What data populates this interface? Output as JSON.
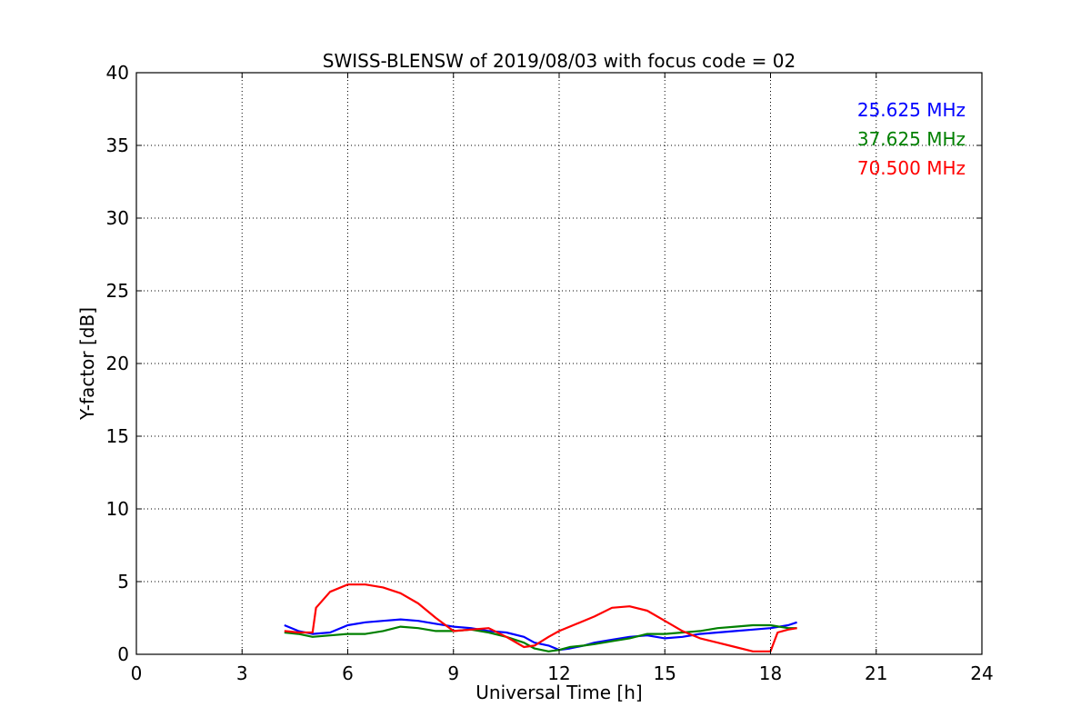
{
  "chart_data": {
    "type": "line",
    "title": "SWISS-BLENSW of 2019/08/03 with focus code = 02",
    "xlabel": "Universal Time [h]",
    "ylabel": "Y-factor [dB]",
    "xlim": [
      0,
      24
    ],
    "ylim": [
      0,
      40
    ],
    "xticks": [
      0,
      3,
      6,
      9,
      12,
      15,
      18,
      21,
      24
    ],
    "yticks": [
      0,
      5,
      10,
      15,
      20,
      25,
      30,
      35,
      40
    ],
    "grid": true,
    "legend_position": "top-right",
    "series": [
      {
        "name": "25.625 MHz",
        "color": "#0000ff",
        "x": [
          4.2,
          4.6,
          5.0,
          5.5,
          6.0,
          6.5,
          7.0,
          7.5,
          8.0,
          8.5,
          9.0,
          9.5,
          10.0,
          10.5,
          11.0,
          11.3,
          11.7,
          12.0,
          12.3,
          12.7,
          13.0,
          13.5,
          14.0,
          14.5,
          15.0,
          15.5,
          16.0,
          16.5,
          17.0,
          17.5,
          18.0,
          18.5,
          18.75
        ],
        "y": [
          2.0,
          1.6,
          1.4,
          1.5,
          2.0,
          2.2,
          2.3,
          2.4,
          2.3,
          2.1,
          1.9,
          1.8,
          1.6,
          1.5,
          1.2,
          0.8,
          0.6,
          0.3,
          0.4,
          0.6,
          0.8,
          1.0,
          1.2,
          1.3,
          1.1,
          1.2,
          1.4,
          1.5,
          1.6,
          1.7,
          1.8,
          2.0,
          2.2
        ]
      },
      {
        "name": "37.625 MHz",
        "color": "#008000",
        "x": [
          4.2,
          4.6,
          5.0,
          5.5,
          6.0,
          6.5,
          7.0,
          7.5,
          8.0,
          8.5,
          9.0,
          9.5,
          10.0,
          10.5,
          11.0,
          11.3,
          11.7,
          12.0,
          12.3,
          12.7,
          13.0,
          13.5,
          14.0,
          14.5,
          15.0,
          15.5,
          16.0,
          16.5,
          17.0,
          17.5,
          18.0,
          18.5,
          18.75
        ],
        "y": [
          1.5,
          1.4,
          1.2,
          1.3,
          1.4,
          1.4,
          1.6,
          1.9,
          1.8,
          1.6,
          1.6,
          1.7,
          1.5,
          1.2,
          0.8,
          0.4,
          0.2,
          0.3,
          0.5,
          0.6,
          0.7,
          0.9,
          1.1,
          1.4,
          1.4,
          1.5,
          1.6,
          1.8,
          1.9,
          2.0,
          2.0,
          1.8,
          1.8
        ]
      },
      {
        "name": "70.500 MHz",
        "color": "#ff0000",
        "x": [
          4.2,
          4.6,
          5.0,
          5.1,
          5.5,
          6.0,
          6.5,
          7.0,
          7.5,
          8.0,
          8.5,
          9.0,
          9.5,
          10.0,
          10.5,
          11.0,
          11.3,
          11.7,
          12.0,
          12.5,
          13.0,
          13.5,
          14.0,
          14.5,
          15.0,
          15.5,
          16.0,
          16.5,
          17.0,
          17.5,
          18.0,
          18.2,
          18.5,
          18.75
        ],
        "y": [
          1.6,
          1.5,
          1.5,
          3.2,
          4.3,
          4.8,
          4.8,
          4.6,
          4.2,
          3.5,
          2.5,
          1.6,
          1.7,
          1.8,
          1.2,
          0.5,
          0.6,
          1.2,
          1.6,
          2.1,
          2.6,
          3.2,
          3.3,
          3.0,
          2.3,
          1.6,
          1.1,
          0.8,
          0.5,
          0.2,
          0.2,
          1.5,
          1.7,
          1.8
        ]
      }
    ]
  }
}
